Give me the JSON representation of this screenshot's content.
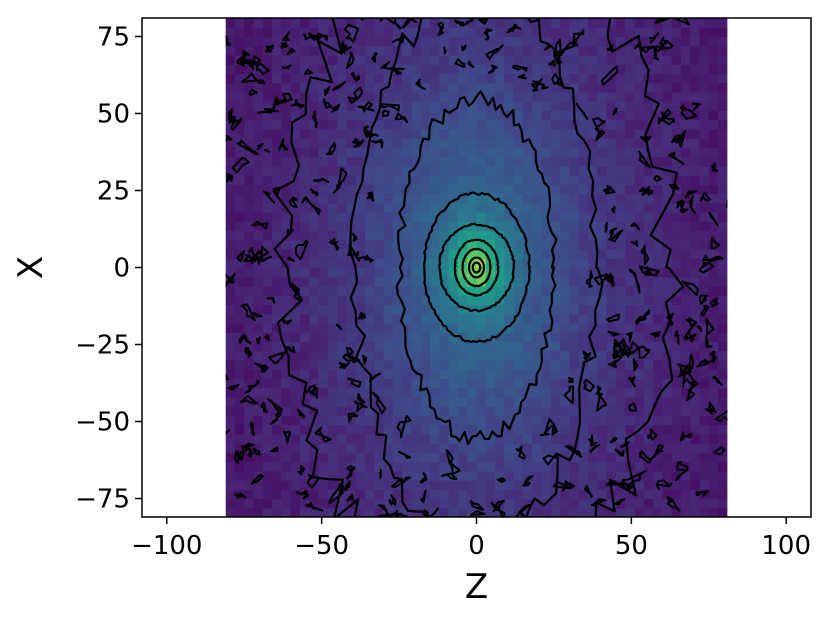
{
  "chart_data": {
    "type": "heatmap",
    "title": "",
    "xlabel": "Z",
    "ylabel": "X",
    "xlim": [
      -108,
      108
    ],
    "ylim": [
      -81,
      81
    ],
    "x_ticks": [
      -100,
      -50,
      0,
      50,
      100
    ],
    "x_tick_labels": [
      "−100",
      "−50",
      "0",
      "50",
      "100"
    ],
    "y_ticks": [
      75,
      50,
      25,
      0,
      -25,
      -50,
      -75
    ],
    "y_tick_labels": [
      "75",
      "50",
      "25",
      "0",
      "−25",
      "−50",
      "−75"
    ],
    "data_extent": {
      "x": [
        -81,
        81
      ],
      "y": [
        -81,
        81
      ]
    },
    "colormap": "viridis",
    "grid": false,
    "contours": [
      {
        "level": 1,
        "shape": "ellipse",
        "center": [
          0,
          0
        ],
        "half_width_z": 62,
        "half_height_x": 110,
        "note": "noisy outer contour"
      },
      {
        "level": 2,
        "shape": "ellipse",
        "center": [
          0,
          0
        ],
        "half_width_z": 39,
        "half_height_x": 90
      },
      {
        "level": 3,
        "shape": "ellipse",
        "center": [
          0,
          0
        ],
        "half_width_z": 25,
        "half_height_x": 55
      },
      {
        "level": 4,
        "shape": "ellipse",
        "center": [
          0,
          0
        ],
        "half_width_z": 17,
        "half_height_x": 24
      },
      {
        "level": 5,
        "shape": "ellipse",
        "center": [
          0,
          0
        ],
        "half_width_z": 12,
        "half_height_x": 14
      },
      {
        "level": 6,
        "shape": "ellipse",
        "center": [
          0,
          0
        ],
        "half_width_z": 7,
        "half_height_x": 9
      },
      {
        "level": 7,
        "shape": "ellipse",
        "center": [
          0,
          0
        ],
        "half_width_z": 4.5,
        "half_height_x": 6
      },
      {
        "level": 8,
        "shape": "ellipse",
        "center": [
          0,
          0
        ],
        "half_width_z": 2.4,
        "half_height_x": 3.2
      },
      {
        "level": 9,
        "shape": "ellipse",
        "center": [
          0,
          0
        ],
        "half_width_z": 1.2,
        "half_height_x": 1.6
      }
    ],
    "colors": {
      "background": "#ffffff",
      "contour": "#000000",
      "peak": "#fde725",
      "low": "#3b1e5a"
    }
  }
}
